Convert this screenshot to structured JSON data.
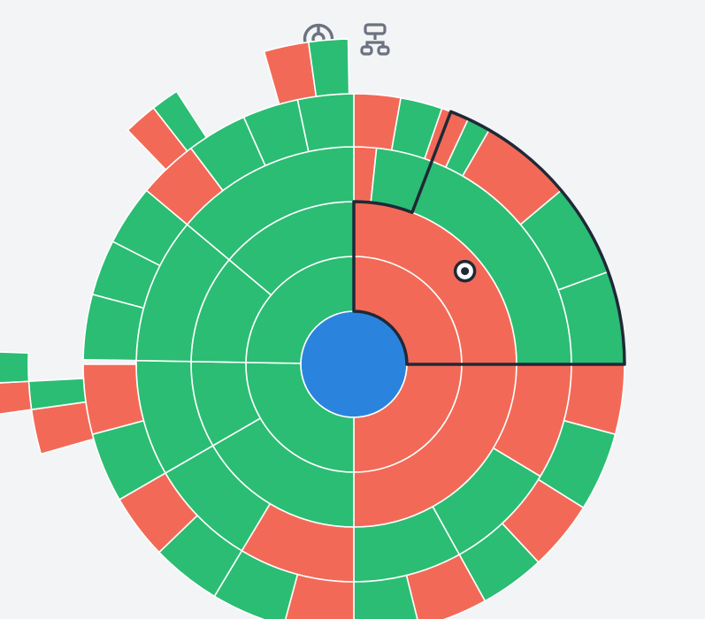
{
  "toolbar": {
    "views": [
      {
        "id": "sunburst",
        "icon": "sunburst-chart-icon",
        "active": true
      },
      {
        "id": "tree",
        "icon": "tree-diagram-icon",
        "active": false
      }
    ]
  },
  "colors": {
    "root": "#2a84de",
    "green": "#2bbd73",
    "red": "#f26a57",
    "highlight": "#1f2937",
    "icon": "#6b7280",
    "background": "#f3f4f6"
  },
  "sunburst": {
    "rings": [
      {
        "level": 1,
        "segments": [
          {
            "start": 0,
            "end": 180,
            "status": "red"
          },
          {
            "start": 180,
            "end": 271,
            "status": "green"
          },
          {
            "start": 271,
            "end": 360,
            "status": "green"
          }
        ]
      },
      {
        "level": 2,
        "segments": [
          {
            "start": 0,
            "end": 90,
            "status": "red",
            "highlighted": true
          },
          {
            "start": 90,
            "end": 180,
            "status": "red"
          },
          {
            "start": 180,
            "end": 240,
            "status": "green"
          },
          {
            "start": 240,
            "end": 271,
            "status": "green"
          },
          {
            "start": 271,
            "end": 310,
            "status": "green"
          },
          {
            "start": 310,
            "end": 360,
            "status": "green"
          }
        ]
      },
      {
        "level": 3,
        "segments": [
          {
            "start": 0,
            "end": 6,
            "status": "red"
          },
          {
            "start": 6,
            "end": 21,
            "status": "green"
          },
          {
            "start": 21,
            "end": 90,
            "status": "green",
            "highlighted": true
          },
          {
            "start": 90,
            "end": 121,
            "status": "red"
          },
          {
            "start": 121,
            "end": 151,
            "status": "green"
          },
          {
            "start": 151,
            "end": 180,
            "status": "green"
          },
          {
            "start": 180,
            "end": 211,
            "status": "red"
          },
          {
            "start": 211,
            "end": 240,
            "status": "green"
          },
          {
            "start": 240,
            "end": 271,
            "status": "green"
          },
          {
            "start": 271,
            "end": 310,
            "status": "green"
          },
          {
            "start": 310,
            "end": 360,
            "status": "green"
          }
        ]
      },
      {
        "level": 4,
        "segments": [
          {
            "start": 0,
            "end": 10,
            "status": "red"
          },
          {
            "start": 10,
            "end": 19,
            "status": "green"
          },
          {
            "start": 19,
            "end": 25,
            "status": "red"
          },
          {
            "start": 25,
            "end": 30,
            "status": "green"
          },
          {
            "start": 30,
            "end": 50,
            "status": "red",
            "highlighted": true
          },
          {
            "start": 50,
            "end": 70,
            "status": "green",
            "highlighted": true
          },
          {
            "start": 70,
            "end": 90,
            "status": "green",
            "highlighted": true
          },
          {
            "start": 90,
            "end": 105,
            "status": "red"
          },
          {
            "start": 105,
            "end": 122,
            "status": "green"
          },
          {
            "start": 122,
            "end": 137,
            "status": "red"
          },
          {
            "start": 137,
            "end": 151,
            "status": "green"
          },
          {
            "start": 151,
            "end": 166,
            "status": "red"
          },
          {
            "start": 166,
            "end": 180,
            "status": "green"
          },
          {
            "start": 180,
            "end": 195,
            "status": "red"
          },
          {
            "start": 195,
            "end": 211,
            "status": "green"
          },
          {
            "start": 211,
            "end": 226,
            "status": "green"
          },
          {
            "start": 226,
            "end": 240,
            "status": "red"
          },
          {
            "start": 240,
            "end": 255,
            "status": "green"
          },
          {
            "start": 255,
            "end": 270,
            "status": "red"
          },
          {
            "start": 271,
            "end": 285,
            "status": "green"
          },
          {
            "start": 285,
            "end": 297,
            "status": "green"
          },
          {
            "start": 297,
            "end": 310,
            "status": "green"
          },
          {
            "start": 310,
            "end": 323,
            "status": "red"
          },
          {
            "start": 323,
            "end": 336,
            "status": "green"
          },
          {
            "start": 336,
            "end": 348,
            "status": "green"
          },
          {
            "start": 348,
            "end": 360,
            "status": "green"
          }
        ]
      },
      {
        "level": 5,
        "segments": [
          {
            "start": 254,
            "end": 262,
            "status": "red"
          },
          {
            "start": 262,
            "end": 267,
            "status": "green"
          },
          {
            "start": 316,
            "end": 322,
            "status": "red"
          },
          {
            "start": 322,
            "end": 327,
            "status": "green"
          },
          {
            "start": 344,
            "end": 352,
            "status": "red"
          },
          {
            "start": 352,
            "end": 359,
            "status": "green"
          }
        ]
      },
      {
        "level": 6,
        "segments": [
          {
            "start": 262,
            "end": 267,
            "status": "red"
          },
          {
            "start": 267,
            "end": 272,
            "status": "green"
          }
        ]
      }
    ]
  }
}
